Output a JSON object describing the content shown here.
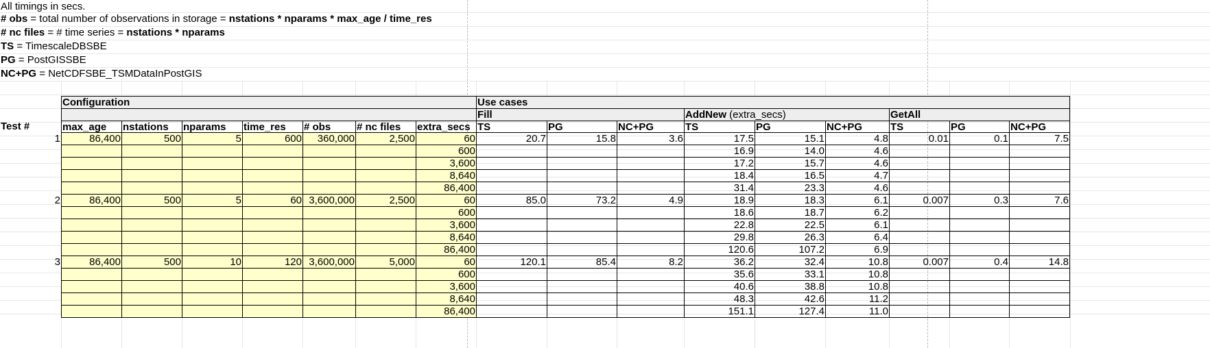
{
  "notes": [
    {
      "bold": "",
      "text": "All timings in secs.",
      "tail_bold": ""
    },
    {
      "bold": "# obs",
      "text": " = total number of observations in storage = ",
      "tail_bold": "nstations * nparams * max_age / time_res"
    },
    {
      "bold": "# nc files",
      "text": " = # time series = ",
      "tail_bold": "nstations * nparams"
    },
    {
      "bold": "TS",
      "text": " = TimescaleDBSBE",
      "tail_bold": ""
    },
    {
      "bold": "PG",
      "text": " = PostGISSBE",
      "tail_bold": ""
    },
    {
      "bold": "NC+PG",
      "text": " = NetCDFSBE_TSMDataInPostGIS",
      "tail_bold": ""
    }
  ],
  "headers": {
    "configuration": "Configuration",
    "use_cases": "Use cases",
    "fill": "Fill",
    "addnew": "AddNew",
    "addnew_suffix": " (extra_secs)",
    "getall": "GetAll",
    "test_num": "Test #",
    "config_cols": [
      "max_age",
      "nstations",
      "nparams",
      "time_res",
      "# obs",
      "# nc files",
      "extra_secs"
    ],
    "backend_cols": [
      "TS",
      "PG",
      "NC+PG"
    ]
  },
  "colors": {
    "config_fill": "#ffffcc",
    "header_fill": "#eeeeee",
    "border": "#000000",
    "grid": "#e6e6e6"
  },
  "tests": [
    {
      "id": "1",
      "config": [
        "86,400",
        "500",
        "5",
        "600",
        "360,000",
        "2,500"
      ],
      "fill": [
        "20.7",
        "15.8",
        "3.6"
      ],
      "getall": [
        "0.01",
        "0.1",
        "7.5"
      ],
      "addnew": [
        {
          "extra_secs": "60",
          "ts": "17.5",
          "pg": "15.1",
          "ncpg": "4.8"
        },
        {
          "extra_secs": "600",
          "ts": "16.9",
          "pg": "14.0",
          "ncpg": "4.6"
        },
        {
          "extra_secs": "3,600",
          "ts": "17.2",
          "pg": "15.7",
          "ncpg": "4.6"
        },
        {
          "extra_secs": "8,640",
          "ts": "18.4",
          "pg": "16.5",
          "ncpg": "4.7"
        },
        {
          "extra_secs": "86,400",
          "ts": "31.4",
          "pg": "23.3",
          "ncpg": "4.6"
        }
      ]
    },
    {
      "id": "2",
      "config": [
        "86,400",
        "500",
        "5",
        "60",
        "3,600,000",
        "2,500"
      ],
      "fill": [
        "85.0",
        "73.2",
        "4.9"
      ],
      "getall": [
        "0.007",
        "0.3",
        "7.6"
      ],
      "addnew": [
        {
          "extra_secs": "60",
          "ts": "18.9",
          "pg": "18.3",
          "ncpg": "6.1"
        },
        {
          "extra_secs": "600",
          "ts": "18.6",
          "pg": "18.7",
          "ncpg": "6.2"
        },
        {
          "extra_secs": "3,600",
          "ts": "22.8",
          "pg": "22.5",
          "ncpg": "6.1"
        },
        {
          "extra_secs": "8,640",
          "ts": "29.8",
          "pg": "26.3",
          "ncpg": "6.4"
        },
        {
          "extra_secs": "86,400",
          "ts": "120.6",
          "pg": "107.2",
          "ncpg": "6.9"
        }
      ]
    },
    {
      "id": "3",
      "config": [
        "86,400",
        "500",
        "10",
        "120",
        "3,600,000",
        "5,000"
      ],
      "fill": [
        "120.1",
        "85.4",
        "8.2"
      ],
      "getall": [
        "0.007",
        "0.4",
        "14.8"
      ],
      "addnew": [
        {
          "extra_secs": "60",
          "ts": "36.2",
          "pg": "32.4",
          "ncpg": "10.8"
        },
        {
          "extra_secs": "600",
          "ts": "35.6",
          "pg": "33.1",
          "ncpg": "10.8"
        },
        {
          "extra_secs": "3,600",
          "ts": "40.6",
          "pg": "38.8",
          "ncpg": "10.8"
        },
        {
          "extra_secs": "8,640",
          "ts": "48.3",
          "pg": "42.6",
          "ncpg": "11.2"
        },
        {
          "extra_secs": "86,400",
          "ts": "151.1",
          "pg": "127.4",
          "ncpg": "11.0"
        }
      ]
    }
  ]
}
